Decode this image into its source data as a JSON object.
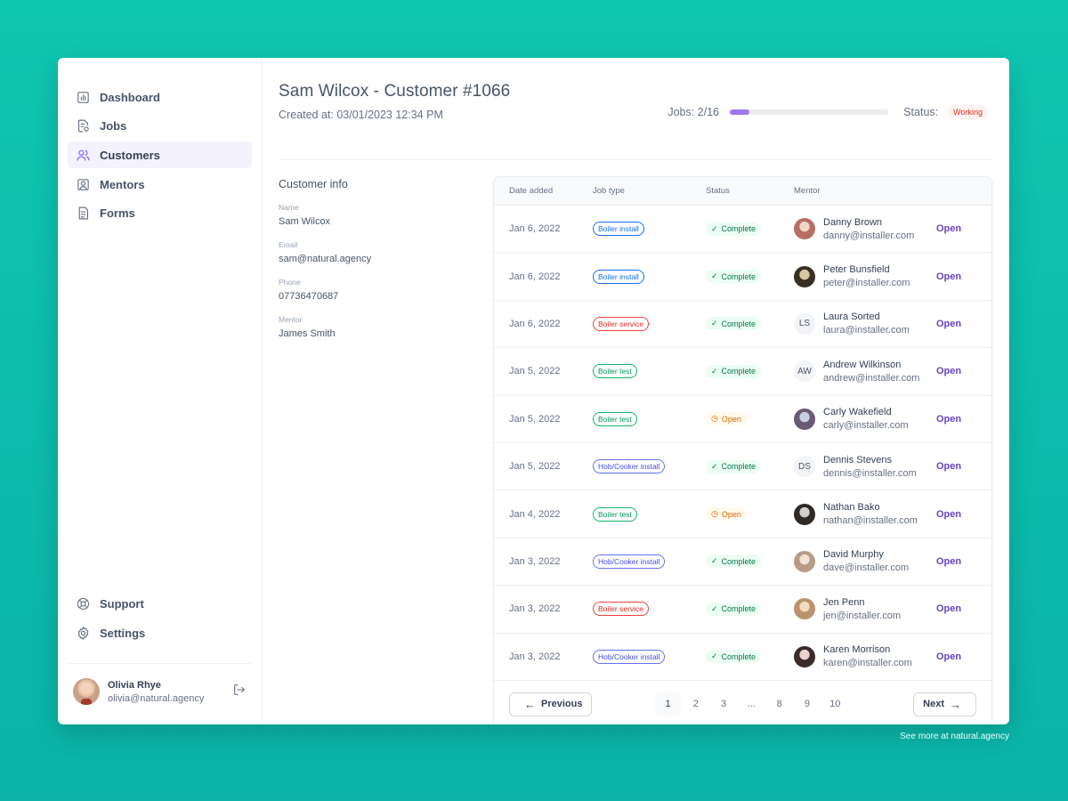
{
  "sidebar": {
    "nav": [
      {
        "label": "Dashboard",
        "icon": "bar-chart-icon"
      },
      {
        "label": "Jobs",
        "icon": "clipboard-icon"
      },
      {
        "label": "Customers",
        "icon": "users-icon"
      },
      {
        "label": "Mentors",
        "icon": "user-square-icon"
      },
      {
        "label": "Forms",
        "icon": "file-icon"
      }
    ],
    "bottom": [
      {
        "label": "Support",
        "icon": "life-buoy-icon"
      },
      {
        "label": "Settings",
        "icon": "gear-icon"
      }
    ],
    "user": {
      "name": "Olivia Rhye",
      "email": "olivia@natural.agency"
    }
  },
  "header": {
    "title": "Sam Wilcox - Customer #1066",
    "created": "Created at: 03/01/2023 12:34 PM",
    "jobs_label": "Jobs: 2/16",
    "jobs_progress": 0.125,
    "status_label": "Status:",
    "status_value": "Working"
  },
  "customer_info": {
    "title": "Customer info",
    "fields": [
      {
        "label": "Name",
        "value": "Sam Wilcox"
      },
      {
        "label": "Email",
        "value": "sam@natural.agency"
      },
      {
        "label": "Phone",
        "value": "07736470687"
      },
      {
        "label": "Mentor",
        "value": "James Smith"
      }
    ]
  },
  "table": {
    "headers": [
      "Date added",
      "Job type",
      "Status",
      "Mentor"
    ],
    "open_label": "Open",
    "rows": [
      {
        "date": "Jan 6, 2022",
        "type": "Boiler install",
        "type_color": "blue",
        "status": "Complete",
        "mentor": "Danny Brown",
        "email": "danny@installer.com",
        "avatar": "photo",
        "initials": ""
      },
      {
        "date": "Jan 6, 2022",
        "type": "Boiler install",
        "type_color": "blue",
        "status": "Complete",
        "mentor": "Peter Bunsfield",
        "email": "peter@installer.com",
        "avatar": "photo",
        "initials": ""
      },
      {
        "date": "Jan 6, 2022",
        "type": "Boiler service",
        "type_color": "red",
        "status": "Complete",
        "mentor": "Laura Sorted",
        "email": "laura@installer.com",
        "avatar": "initials",
        "initials": "LS"
      },
      {
        "date": "Jan 5, 2022",
        "type": "Boiler test",
        "type_color": "green",
        "status": "Complete",
        "mentor": "Andrew Wilkinson",
        "email": "andrew@installer.com",
        "avatar": "initials",
        "initials": "AW"
      },
      {
        "date": "Jan 5, 2022",
        "type": "Boiler test",
        "type_color": "green",
        "status": "Open",
        "mentor": "Carly Wakefield",
        "email": "carly@installer.com",
        "avatar": "photo",
        "initials": ""
      },
      {
        "date": "Jan 5, 2022",
        "type": "Hob/Cooker install",
        "type_color": "indigo",
        "status": "Complete",
        "mentor": "Dennis Stevens",
        "email": "dennis@installer.com",
        "avatar": "initials",
        "initials": "DS"
      },
      {
        "date": "Jan 4, 2022",
        "type": "Boiler test",
        "type_color": "green",
        "status": "Open",
        "mentor": "Nathan Bako",
        "email": "nathan@installer.com",
        "avatar": "photo",
        "initials": ""
      },
      {
        "date": "Jan 3, 2022",
        "type": "Hob/Cooker install",
        "type_color": "indigo",
        "status": "Complete",
        "mentor": "David Murphy",
        "email": "dave@installer.com",
        "avatar": "photo",
        "initials": ""
      },
      {
        "date": "Jan 3, 2022",
        "type": "Boiler service",
        "type_color": "red",
        "status": "Complete",
        "mentor": "Jen Penn",
        "email": "jen@installer.com",
        "avatar": "photo",
        "initials": ""
      },
      {
        "date": "Jan 3, 2022",
        "type": "Hob/Cooker install",
        "type_color": "indigo",
        "status": "Complete",
        "mentor": "Karen Morrison",
        "email": "karen@installer.com",
        "avatar": "photo",
        "initials": ""
      }
    ]
  },
  "pagination": {
    "previous": "Previous",
    "next": "Next",
    "pages": [
      "1",
      "2",
      "3",
      "...",
      "8",
      "9",
      "10"
    ],
    "current": "1"
  },
  "footer": {
    "note": "See more at natural.agency"
  }
}
